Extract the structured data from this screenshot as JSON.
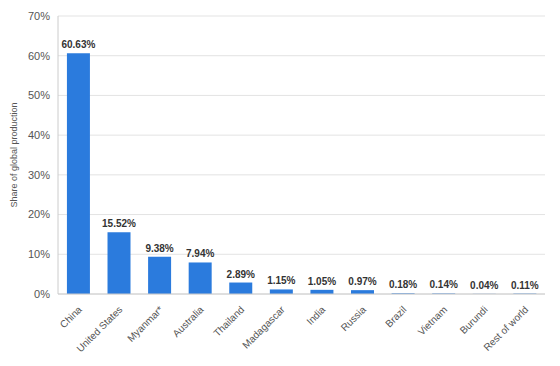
{
  "chart_data": {
    "type": "bar",
    "y_label": "Share of global production",
    "categories": [
      "China",
      "United States",
      "Myanmar*",
      "Australia",
      "Thailand",
      "Madagascar",
      "India",
      "Russia",
      "Brazil",
      "Vietnam",
      "Burundi",
      "Rest of world"
    ],
    "values": [
      60.63,
      15.52,
      9.38,
      7.94,
      2.89,
      1.15,
      1.05,
      0.97,
      0.18,
      0.14,
      0.04,
      0.11
    ],
    "value_labels": [
      "60.63%",
      "15.52%",
      "9.38%",
      "7.94%",
      "2.89%",
      "1.15%",
      "1.05%",
      "0.97%",
      "0.18%",
      "0.14%",
      "0.04%",
      "0.11%"
    ],
    "color": "#2b7bdd",
    "ylim": [
      0,
      70
    ],
    "yticks": [
      {
        "value": 0,
        "label": "0%"
      },
      {
        "value": 10,
        "label": "10%"
      },
      {
        "value": 20,
        "label": "20%"
      },
      {
        "value": 30,
        "label": "30%"
      },
      {
        "value": 40,
        "label": "40%"
      },
      {
        "value": 50,
        "label": "50%"
      },
      {
        "value": 60,
        "label": "60%"
      },
      {
        "value": 70,
        "label": "70%"
      }
    ],
    "grid": true,
    "data_labels": true
  }
}
